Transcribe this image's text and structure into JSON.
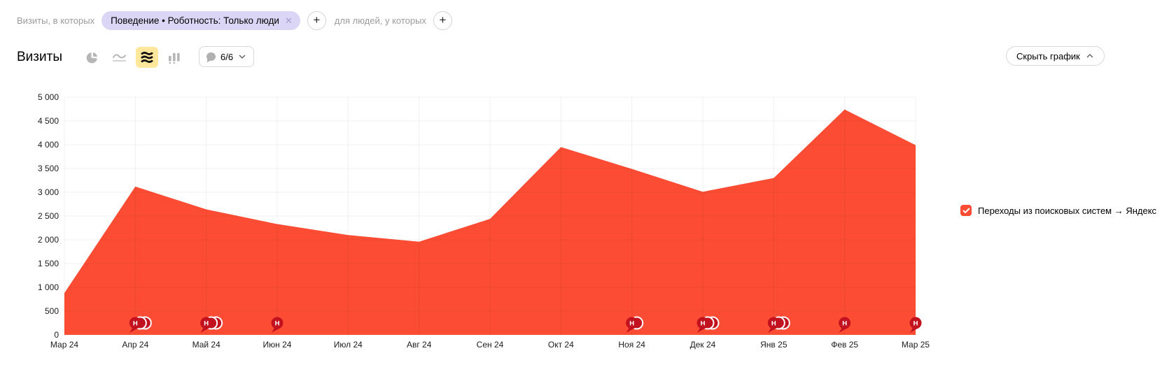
{
  "filter_bar": {
    "visits_label": "Визиты, в которых",
    "chip": {
      "label": "Поведение • Роботность: Только люди"
    },
    "people_label": "для людей, у которых"
  },
  "toolbar": {
    "title": "Визиты",
    "chart_types": [
      {
        "name": "pie",
        "selected": false
      },
      {
        "name": "line",
        "selected": false
      },
      {
        "name": "stacked-area",
        "selected": true
      },
      {
        "name": "columns",
        "selected": false
      }
    ],
    "comments_count": "6/6",
    "hide_chart_label": "Скрыть график"
  },
  "icons": {
    "plus": "+",
    "close": "✕"
  },
  "legend": {
    "items": [
      {
        "label": "Переходы из поисковых систем → Яндекс",
        "color": "#fc4c33",
        "checked": true
      }
    ]
  },
  "chart_data": {
    "type": "area",
    "title": "Визиты",
    "categories": [
      "Мар 24",
      "Апр 24",
      "Май 24",
      "Июн 24",
      "Июл 24",
      "Авг 24",
      "Сен 24",
      "Окт 24",
      "Ноя 24",
      "Дек 24",
      "Янв 25",
      "Фев 25",
      "Мар 25"
    ],
    "series": [
      {
        "name": "Переходы из поисковых систем → Яндекс",
        "color": "#fc4c33",
        "values": [
          880,
          3120,
          2640,
          2330,
          2100,
          1960,
          2440,
          3950,
          3490,
          3010,
          3300,
          4740,
          3990
        ]
      }
    ],
    "ylim": [
      0,
      5000
    ],
    "ytick_step": 500,
    "grid": true,
    "legend_position": "right",
    "marker_glyph": "Н",
    "marker_color": "#c3121f",
    "markers": [
      {
        "category": "Апр 24",
        "count": 3
      },
      {
        "category": "Май 24",
        "count": 3
      },
      {
        "category": "Июн 24",
        "count": 1
      },
      {
        "category": "Ноя 24",
        "count": 2
      },
      {
        "category": "Дек 24",
        "count": 3
      },
      {
        "category": "Янв 25",
        "count": 3
      },
      {
        "category": "Фев 25",
        "count": 1
      },
      {
        "category": "Мар 25",
        "count": 1
      }
    ]
  }
}
